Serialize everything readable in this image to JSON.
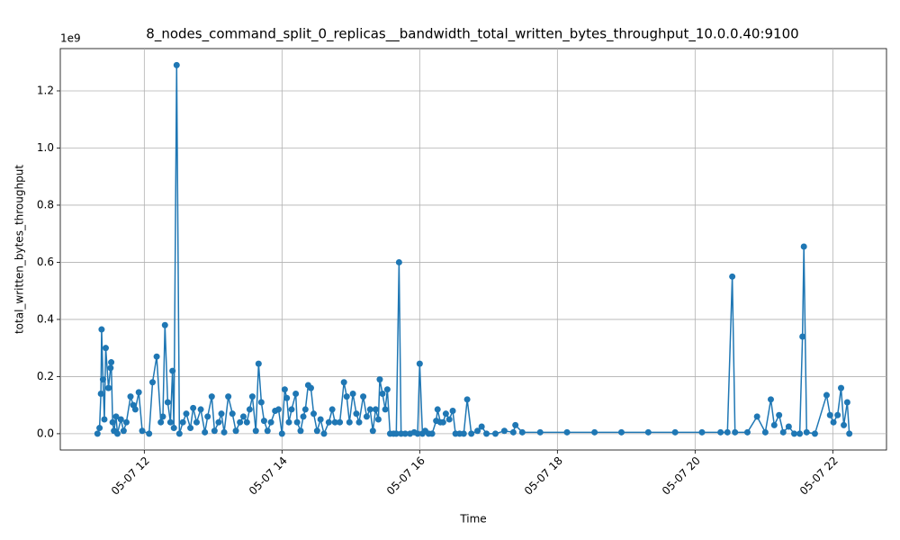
{
  "chart_data": {
    "type": "line",
    "title": "8_nodes_command_split_0_replicas__bandwidth_total_written_bytes_throughput_10.0.0.40:9100",
    "x_label": "Time",
    "y_label": "total_written_bytes_throughput",
    "y_offset_label": "1e9",
    "grid": true,
    "marker": "circle",
    "xlim": [
      10.78,
      22.78
    ],
    "xticks": [
      {
        "value": 12,
        "label": "05-07 12"
      },
      {
        "value": 14,
        "label": "05-07 14"
      },
      {
        "value": 16,
        "label": "05-07 16"
      },
      {
        "value": 18,
        "label": "05-07 18"
      },
      {
        "value": 20,
        "label": "05-07 20"
      },
      {
        "value": 22,
        "label": "05-07 22"
      }
    ],
    "ylim": [
      -0.057,
      1.348
    ],
    "yticks": [
      {
        "value": 0,
        "label": "0.0"
      },
      0.2,
      0.4,
      0.6,
      0.8,
      {
        "value": 1,
        "label": "1.0"
      },
      1.2
    ],
    "x": [
      11.32,
      11.35,
      11.37,
      11.38,
      11.4,
      11.42,
      11.44,
      11.48,
      11.51,
      11.52,
      11.54,
      11.56,
      11.59,
      11.61,
      11.66,
      11.7,
      11.74,
      11.8,
      11.84,
      11.87,
      11.92,
      11.97,
      12.07,
      12.12,
      12.18,
      12.24,
      12.27,
      12.3,
      12.34,
      12.38,
      12.41,
      12.43,
      12.47,
      12.51,
      12.56,
      12.61,
      12.67,
      12.71,
      12.76,
      12.82,
      12.88,
      12.92,
      12.98,
      13.02,
      13.08,
      13.12,
      13.16,
      13.22,
      13.28,
      13.33,
      13.39,
      13.44,
      13.49,
      13.53,
      13.57,
      13.62,
      13.66,
      13.7,
      13.74,
      13.79,
      13.84,
      13.9,
      13.95,
      14.0,
      14.04,
      14.07,
      14.1,
      14.14,
      14.2,
      14.22,
      14.27,
      14.31,
      14.34,
      14.38,
      14.42,
      14.46,
      14.51,
      14.56,
      14.61,
      14.68,
      14.73,
      14.77,
      14.84,
      14.9,
      14.94,
      14.98,
      15.03,
      15.08,
      15.12,
      15.18,
      15.23,
      15.28,
      15.32,
      15.36,
      15.4,
      15.42,
      15.46,
      15.5,
      15.53,
      15.57,
      15.62,
      15.66,
      15.7,
      15.73,
      15.79,
      15.86,
      15.92,
      15.97,
      16.0,
      16.04,
      16.08,
      16.13,
      16.18,
      16.24,
      16.26,
      16.3,
      16.34,
      16.38,
      16.43,
      16.48,
      16.52,
      16.58,
      16.64,
      16.69,
      16.75,
      16.84,
      16.9,
      16.97,
      17.1,
      17.23,
      17.36,
      17.39,
      17.49,
      17.75,
      18.14,
      18.54,
      18.93,
      19.32,
      19.71,
      20.1,
      20.37,
      20.47,
      20.54,
      20.58,
      20.76,
      20.9,
      21.02,
      21.1,
      21.15,
      21.22,
      21.28,
      21.36,
      21.44,
      21.52,
      21.56,
      21.58,
      21.62,
      21.74,
      21.91,
      21.96,
      22.01,
      22.07,
      22.12,
      22.16,
      22.21,
      22.24
    ],
    "series": [
      {
        "name": "total_written_bytes_throughput",
        "color": "#1f77b4",
        "values": [
          0,
          0.02,
          0.14,
          0.365,
          0.19,
          0.05,
          0.3,
          0.16,
          0.23,
          0.25,
          0.04,
          0.01,
          0.06,
          0,
          0.05,
          0.01,
          0.04,
          0.13,
          0.1,
          0.085,
          0.145,
          0.01,
          0,
          0.18,
          0.27,
          0.04,
          0.06,
          0.38,
          0.11,
          0.04,
          0.22,
          0.02,
          1.29,
          0,
          0.04,
          0.07,
          0.02,
          0.09,
          0.04,
          0.085,
          0.005,
          0.06,
          0.13,
          0.01,
          0.04,
          0.07,
          0.005,
          0.13,
          0.07,
          0.01,
          0.04,
          0.06,
          0.04,
          0.085,
          0.13,
          0.01,
          0.245,
          0.11,
          0.045,
          0.01,
          0.04,
          0.08,
          0.085,
          0,
          0.155,
          0.125,
          0.04,
          0.085,
          0.14,
          0.04,
          0.01,
          0.06,
          0.085,
          0.17,
          0.16,
          0.07,
          0.01,
          0.05,
          0,
          0.04,
          0.085,
          0.04,
          0.04,
          0.18,
          0.13,
          0.04,
          0.14,
          0.07,
          0.04,
          0.13,
          0.06,
          0.085,
          0.01,
          0.085,
          0.05,
          0.19,
          0.14,
          0.085,
          0.155,
          0,
          0,
          0,
          0.6,
          0,
          0,
          0,
          0.005,
          0,
          0.245,
          0,
          0.01,
          0,
          0,
          0.045,
          0.085,
          0.04,
          0.04,
          0.07,
          0.05,
          0.08,
          0,
          0,
          0,
          0.12,
          0,
          0.01,
          0.025,
          0,
          0,
          0.01,
          0.005,
          0.03,
          0.005,
          0.005,
          0.005,
          0.005,
          0.005,
          0.005,
          0.005,
          0.005,
          0.005,
          0.005,
          0.55,
          0.005,
          0.005,
          0.06,
          0.005,
          0.12,
          0.03,
          0.065,
          0.005,
          0.025,
          0,
          0,
          0.34,
          0.655,
          0.005,
          0,
          0.135,
          0.065,
          0.04,
          0.065,
          0.16,
          0.03,
          0.11,
          0
        ]
      }
    ]
  }
}
